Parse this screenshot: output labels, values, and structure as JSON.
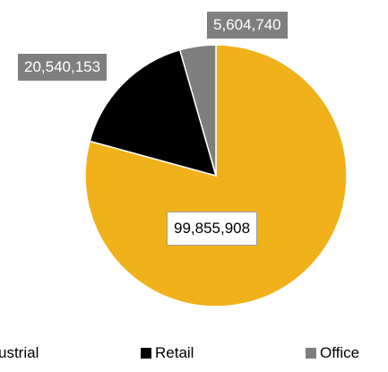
{
  "chart_data": {
    "type": "pie",
    "slices": [
      {
        "name": "Industrial",
        "value": 99855908,
        "label": "99,855,908",
        "color": "#F0B11A"
      },
      {
        "name": "Retail",
        "value": 20540153,
        "label": "20,540,153",
        "color": "#000000"
      },
      {
        "name": "Office",
        "value": 5604740,
        "label": "5,604,740",
        "color": "#7F7F7F"
      }
    ],
    "start_angle_deg": 0,
    "direction": "clockwise",
    "legend_position": "bottom",
    "legend": [
      "ustrial",
      "Retail",
      "Office"
    ]
  }
}
